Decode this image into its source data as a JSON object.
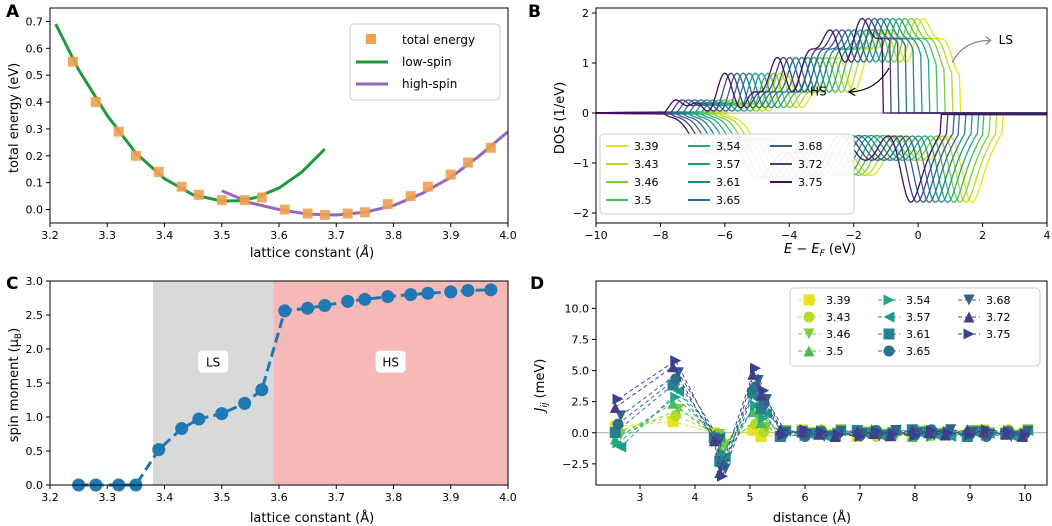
{
  "figure": {
    "title": "",
    "panels": [
      "A",
      "B",
      "C",
      "D"
    ]
  },
  "chart_data": [
    {
      "panel": "A",
      "type": "scatter",
      "xlabel": "lattice constant (Å)",
      "ylabel": "total energy (eV)",
      "xlim": [
        3.2,
        4.0
      ],
      "ylim": [
        -0.05,
        0.75
      ],
      "xticks": [
        3.2,
        3.3,
        3.4,
        3.5,
        3.6,
        3.7,
        3.8,
        3.9,
        4.0
      ],
      "yticks": [
        0.0,
        0.1,
        0.2,
        0.3,
        0.4,
        0.5,
        0.6,
        0.7
      ],
      "series": [
        {
          "name": "total energy",
          "kind": "markers",
          "color": "#f0a050",
          "x": [
            3.24,
            3.28,
            3.32,
            3.35,
            3.39,
            3.43,
            3.46,
            3.5,
            3.54,
            3.57,
            3.61,
            3.65,
            3.68,
            3.72,
            3.75,
            3.79,
            3.83,
            3.86,
            3.9,
            3.93,
            3.97
          ],
          "y": [
            0.55,
            0.4,
            0.29,
            0.2,
            0.14,
            0.085,
            0.055,
            0.035,
            0.035,
            0.045,
            0.0,
            -0.015,
            -0.02,
            -0.015,
            -0.01,
            0.02,
            0.05,
            0.085,
            0.13,
            0.175,
            0.23
          ]
        },
        {
          "name": "low-spin",
          "kind": "line",
          "color": "#1e9a3c",
          "x": [
            3.21,
            3.25,
            3.3,
            3.35,
            3.4,
            3.45,
            3.5,
            3.53,
            3.56,
            3.6,
            3.64,
            3.68
          ],
          "y": [
            0.69,
            0.52,
            0.35,
            0.21,
            0.115,
            0.055,
            0.032,
            0.033,
            0.045,
            0.08,
            0.14,
            0.225
          ]
        },
        {
          "name": "high-spin",
          "kind": "line",
          "color": "#9467bd",
          "x": [
            3.5,
            3.55,
            3.6,
            3.65,
            3.7,
            3.75,
            3.8,
            3.85,
            3.9,
            3.95,
            4.0
          ],
          "y": [
            0.07,
            0.025,
            0.0,
            -0.017,
            -0.02,
            -0.01,
            0.015,
            0.06,
            0.12,
            0.2,
            0.29
          ]
        }
      ],
      "legend": [
        "total energy",
        "low-spin",
        "high-spin"
      ]
    },
    {
      "panel": "B",
      "type": "line",
      "xlabel": "E − E_F (eV)",
      "ylabel": "DOS (1/eV)",
      "xlim": [
        -10,
        4
      ],
      "ylim": [
        -2.2,
        2.1
      ],
      "xticks": [
        -10,
        -8,
        -6,
        -4,
        -2,
        0,
        2,
        4
      ],
      "yticks": [
        -2,
        -1,
        0,
        1,
        2
      ],
      "annotations": [
        {
          "text": "LS"
        },
        {
          "text": "HS"
        }
      ],
      "series_names": [
        "3.39",
        "3.43",
        "3.46",
        "3.5",
        "3.54",
        "3.57",
        "3.61",
        "3.65",
        "3.68",
        "3.72",
        "3.75"
      ],
      "series_colors": [
        "#e8e21b",
        "#b5dc25",
        "#7cce3c",
        "#44bf5c",
        "#22a884",
        "#1f9a8a",
        "#23838e",
        "#2c6f8e",
        "#355f8d",
        "#433e85",
        "#440f5a"
      ]
    },
    {
      "panel": "C",
      "type": "line",
      "xlabel": "lattice constant (Å)",
      "ylabel": "spin moment (μ_B)",
      "xlim": [
        3.2,
        4.0
      ],
      "ylim": [
        0.0,
        3.0
      ],
      "xticks": [
        3.2,
        3.3,
        3.4,
        3.5,
        3.6,
        3.7,
        3.8,
        3.9,
        4.0
      ],
      "yticks": [
        0.0,
        0.5,
        1.0,
        1.5,
        2.0,
        2.5,
        3.0
      ],
      "regions": [
        {
          "label": "LS",
          "from": 3.38,
          "to": 3.59
        },
        {
          "label": "HS",
          "from": 3.59,
          "to": 4.0
        }
      ],
      "x": [
        3.25,
        3.28,
        3.32,
        3.35,
        3.39,
        3.43,
        3.46,
        3.5,
        3.54,
        3.57,
        3.61,
        3.65,
        3.68,
        3.72,
        3.75,
        3.79,
        3.83,
        3.86,
        3.9,
        3.93,
        3.97
      ],
      "y": [
        0.0,
        0.0,
        0.0,
        0.0,
        0.52,
        0.83,
        0.97,
        1.05,
        1.2,
        1.4,
        2.56,
        2.6,
        2.64,
        2.7,
        2.73,
        2.77,
        2.8,
        2.82,
        2.84,
        2.86,
        2.87
      ]
    },
    {
      "panel": "D",
      "type": "line",
      "xlabel": "distance (Å)",
      "ylabel": "J_ij (meV)",
      "xlim": [
        2.2,
        10.4
      ],
      "ylim": [
        -4.2,
        12.2
      ],
      "xticks": [
        3,
        4,
        5,
        6,
        7,
        8,
        9,
        10
      ],
      "yticks": [
        -2.5,
        0.0,
        2.5,
        5.0,
        7.5,
        10.0
      ],
      "series_names": [
        "3.39",
        "3.43",
        "3.46",
        "3.5",
        "3.54",
        "3.57",
        "3.61",
        "3.65",
        "3.68",
        "3.72",
        "3.75"
      ]
    }
  ],
  "texts": {
    "a_letter": "A",
    "b_letter": "B",
    "c_letter": "C",
    "d_letter": "D",
    "a_xlabel": "lattice constant (",
    "a_xunit": "Å",
    "a_xend": ")",
    "a_ylabel": "total energy (eV)",
    "b_xlabel": "E − E",
    "b_xsub": "F",
    "b_xend": " (eV)",
    "b_ylabel": "DOS (1/eV)",
    "b_ls": "LS",
    "b_hs": "HS",
    "c_xlabel": "lattice constant (Å)",
    "c_ylabel": "spin moment (μ",
    "c_ysub": "B",
    "c_yend": ")",
    "c_ls": "LS",
    "c_hs": "HS",
    "d_xlabel": "distance (Å)",
    "d_ylabel": "J",
    "d_ysub": "ij",
    "d_yend": " (meV)"
  }
}
